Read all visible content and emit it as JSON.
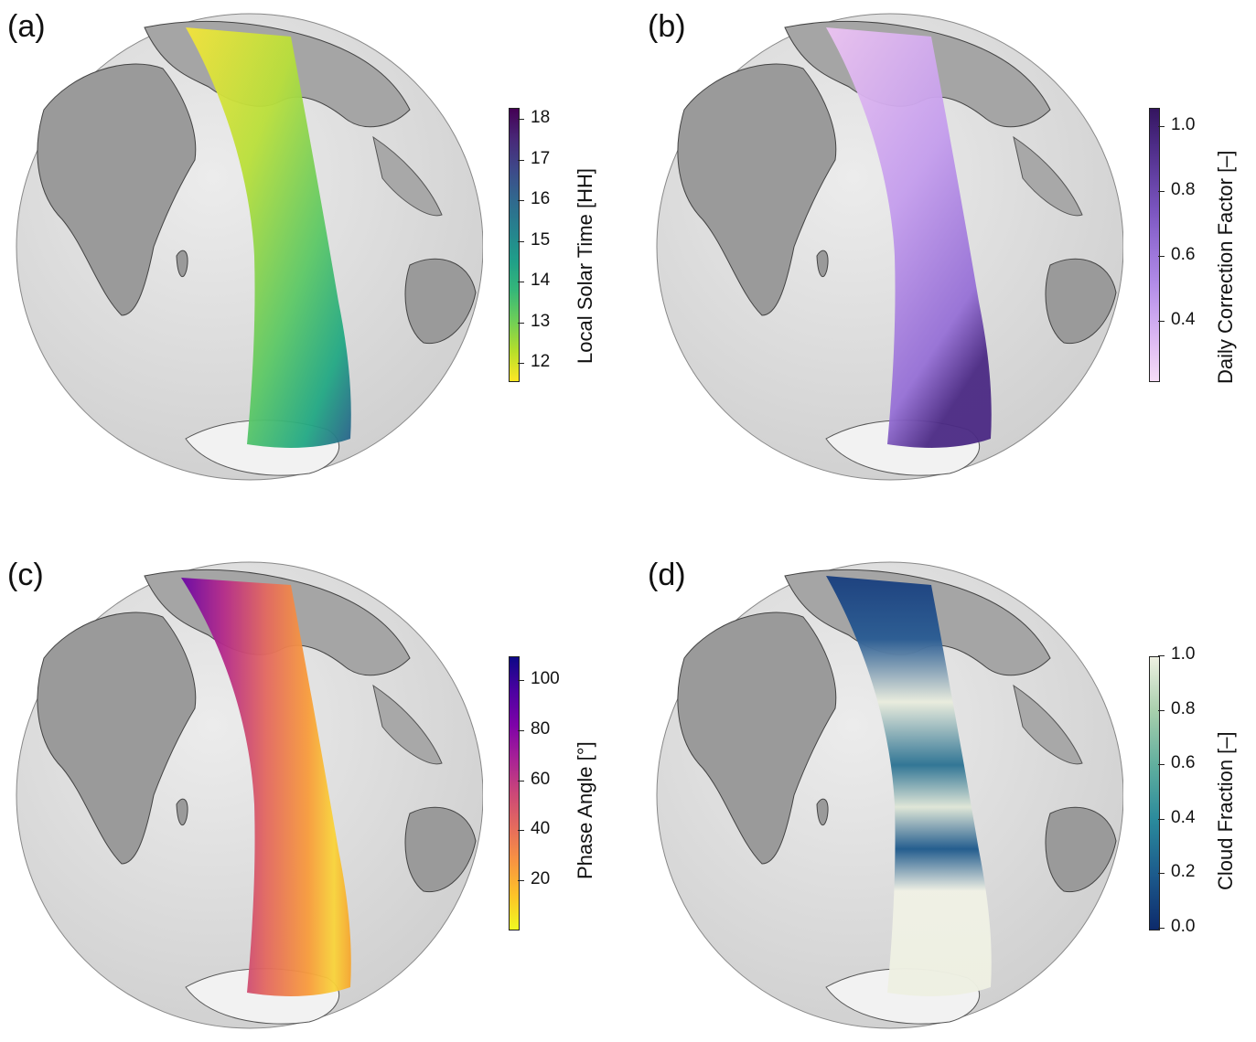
{
  "panels": [
    {
      "letter": "(a)",
      "colorbar": {
        "title": "Local Solar Time [HH]",
        "ticks": [
          "18",
          "17",
          "16",
          "15",
          "14",
          "13",
          "12"
        ],
        "range": [
          11.6,
          18.3
        ],
        "colors": [
          "#fde725",
          "#b5de2b",
          "#6ece58",
          "#35b779",
          "#1f9e89",
          "#26828e",
          "#31688e",
          "#3e4989",
          "#482878",
          "#440154"
        ]
      }
    },
    {
      "letter": "(b)",
      "colorbar": {
        "title": "Daily Correction Factor [–]",
        "ticks": [
          "1.0",
          "0.8",
          "0.6",
          "0.4"
        ],
        "range": [
          0.22,
          1.06
        ],
        "colors": [
          "#f6dcf6",
          "#e2bff3",
          "#c9a4ef",
          "#ae88e6",
          "#9670d6",
          "#7b55c0",
          "#6340a3",
          "#4b2a84",
          "#34155f"
        ]
      }
    },
    {
      "letter": "(c)",
      "colorbar": {
        "title": "Phase Angle [°]",
        "ticks": [
          "100",
          "80",
          "60",
          "40",
          "20"
        ],
        "range": [
          1,
          110
        ],
        "colors": [
          "#f0f921",
          "#fdc328",
          "#f89441",
          "#e56b5d",
          "#cb4778",
          "#a82296",
          "#7e03a8",
          "#4c02a1",
          "#0d0887"
        ]
      }
    },
    {
      "letter": "(d)",
      "colorbar": {
        "title": "Cloud Fraction [–]",
        "ticks": [
          "1.0",
          "0.8",
          "0.6",
          "0.4",
          "0.2",
          "0.0"
        ],
        "range": [
          0.0,
          1.0
        ],
        "colors": [
          "#0d2a6b",
          "#1c5a8c",
          "#2a8a9c",
          "#5fae9e",
          "#a7cfac",
          "#eef0e2"
        ]
      }
    }
  ]
}
